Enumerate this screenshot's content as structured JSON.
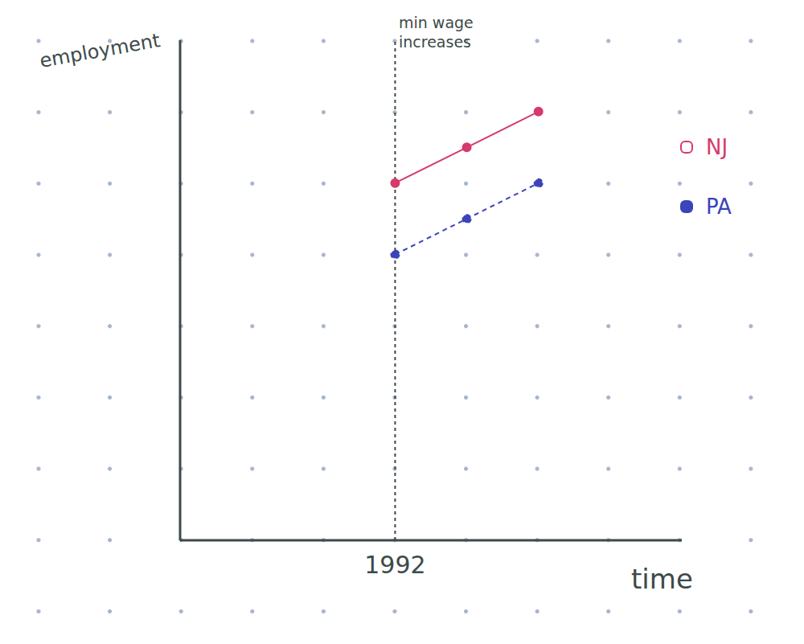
{
  "chart_data": {
    "type": "line",
    "x_label": "time",
    "y_label": "employment",
    "x": [
      1992,
      1993,
      1994
    ],
    "series": [
      {
        "name": "NJ",
        "color": "#d63a6a",
        "values": [
          5.0,
          5.5,
          6.0
        ],
        "marker": "circle",
        "line_style": "solid"
      },
      {
        "name": "PA",
        "color": "#3b44b8",
        "values": [
          4.0,
          4.5,
          5.0
        ],
        "marker": "circle",
        "line_style": "dashed"
      }
    ],
    "xlim": [
      1989,
      1996
    ],
    "xticks": [
      1992
    ],
    "ylim": [
      0,
      7
    ],
    "grid": false,
    "tick_labels": "x",
    "legend": "right",
    "annotations": [
      {
        "text": "min wage increases",
        "x": 1992
      }
    ]
  }
}
